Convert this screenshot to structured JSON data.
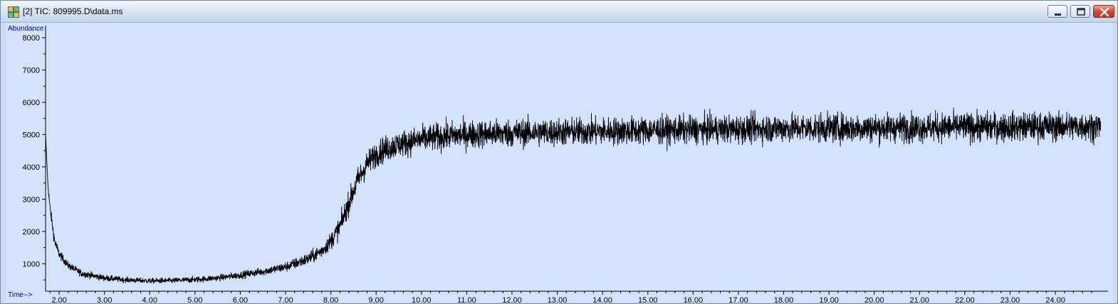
{
  "window": {
    "title": "[2] TIC: 809995.D\\data.ms",
    "icon": "chromatogram-app-icon",
    "buttons": [
      "minimize",
      "maximize",
      "close"
    ]
  },
  "colors": {
    "plot_background": "#d2e3fb",
    "trace": "#000000",
    "axis_label": "#0000cc"
  },
  "chart_data": {
    "type": "line",
    "ylabel": "Abundance",
    "xlabel": "Time-->",
    "xlim": [
      1.7,
      25.1
    ],
    "ylim": [
      150,
      8200
    ],
    "x_ticks": [
      2,
      3,
      4,
      5,
      6,
      7,
      8,
      9,
      10,
      11,
      12,
      13,
      14,
      15,
      16,
      17,
      18,
      19,
      20,
      21,
      22,
      23,
      24
    ],
    "x_tick_labels": [
      "2.00",
      "3.00",
      "4.00",
      "5.00",
      "6.00",
      "7.00",
      "8.00",
      "9.00",
      "10.00",
      "11.00",
      "12.00",
      "13.00",
      "14.00",
      "15.00",
      "16.00",
      "17.00",
      "18.00",
      "19.00",
      "20.00",
      "21.00",
      "22.00",
      "23.00",
      "24.00"
    ],
    "y_ticks": [
      1000,
      2000,
      3000,
      4000,
      5000,
      6000,
      7000,
      8000
    ],
    "y_tick_labels": [
      "1000",
      "2000",
      "3000",
      "4000",
      "5000",
      "6000",
      "7000",
      "8000"
    ],
    "grid": false,
    "series": [
      {
        "x": [
          1.7,
          1.75,
          1.8,
          1.9,
          2.0,
          2.2,
          2.5,
          3.0,
          3.5,
          4.0,
          4.5,
          5.0,
          5.5,
          6.0,
          6.5,
          7.0,
          7.5,
          7.8,
          8.0,
          8.2,
          8.4,
          8.6,
          8.8,
          9.0,
          9.2,
          9.5,
          10.0,
          10.5,
          11.0,
          12.0,
          13.0,
          14.0,
          15.0,
          16.0,
          17.0,
          18.0,
          19.0,
          20.0,
          21.0,
          22.0,
          23.0,
          24.0,
          25.0
        ],
        "y": [
          5000,
          3500,
          2700,
          1700,
          1300,
          950,
          700,
          560,
          500,
          470,
          480,
          510,
          560,
          650,
          760,
          900,
          1150,
          1400,
          1700,
          2150,
          2900,
          3600,
          4100,
          4400,
          4550,
          4700,
          4850,
          4950,
          5000,
          5050,
          5080,
          5100,
          5130,
          5150,
          5170,
          5200,
          5200,
          5210,
          5220,
          5230,
          5240,
          5250,
          5260
        ],
        "noise": [
          0,
          80,
          120,
          120,
          100,
          80,
          80,
          70,
          60,
          60,
          60,
          70,
          70,
          80,
          90,
          110,
          140,
          160,
          190,
          230,
          260,
          280,
          280,
          280,
          290,
          290,
          300,
          310,
          310,
          310,
          310,
          310,
          310,
          310,
          310,
          320,
          320,
          320,
          320,
          320,
          320,
          320,
          320
        ]
      }
    ]
  }
}
